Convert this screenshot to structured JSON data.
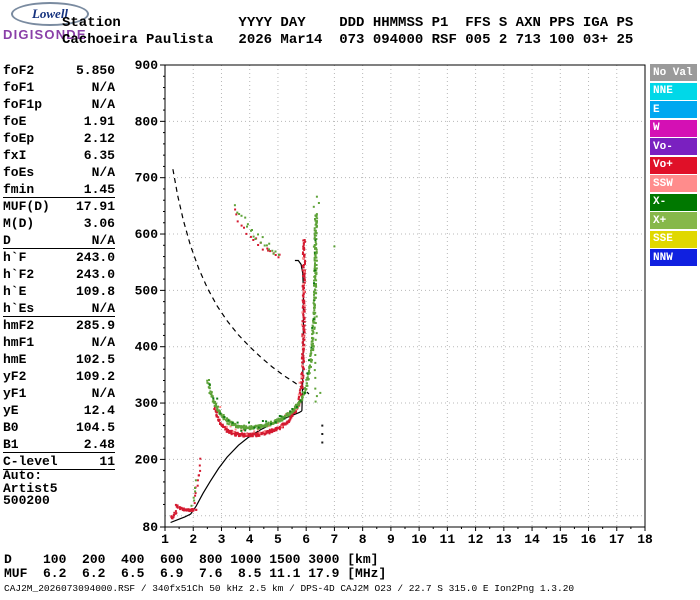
{
  "logo": {
    "oval": "Lowell",
    "brand": "DIGISONDE"
  },
  "header": {
    "line1": "Station              YYYY DAY    DDD HHMMSS P1  FFS S AXN PPS IGA PS",
    "line2": "Cachoeira Paulista   2026 Mar14  073 094000 RSF 005 2 713 100 03+ 25"
  },
  "params": {
    "rows": [
      {
        "label": "foF2",
        "value": "5.850"
      },
      {
        "label": "foF1",
        "value": "N/A"
      },
      {
        "label": "foF1p",
        "value": "N/A"
      },
      {
        "label": "foE",
        "value": "1.91"
      },
      {
        "label": "foEp",
        "value": "2.12"
      },
      {
        "label": "fxI",
        "value": "6.35"
      },
      {
        "label": "foEs",
        "value": "N/A"
      },
      {
        "label": "fmin",
        "value": "1.45",
        "sep_after": true
      },
      {
        "label": "MUF(D)",
        "value": "17.91"
      },
      {
        "label": "M(D)",
        "value": "3.06"
      },
      {
        "label": "D",
        "value": "N/A",
        "sep_after": true
      },
      {
        "label": "h`F",
        "value": "243.0"
      },
      {
        "label": "h`F2",
        "value": "243.0"
      },
      {
        "label": "h`E",
        "value": "109.8"
      },
      {
        "label": "h`Es",
        "value": "N/A",
        "sep_after": true
      },
      {
        "label": "hmF2",
        "value": "285.9"
      },
      {
        "label": "hmF1",
        "value": "N/A"
      },
      {
        "label": "hmE",
        "value": "102.5"
      },
      {
        "label": "yF2",
        "value": "109.2"
      },
      {
        "label": "yF1",
        "value": "N/A"
      },
      {
        "label": "yE",
        "value": "12.4"
      },
      {
        "label": "B0",
        "value": "104.5"
      },
      {
        "label": "B1",
        "value": "2.48",
        "sep_after": true
      },
      {
        "label": "C-level",
        "value": "11",
        "sep_after": true
      },
      {
        "label": "Auto:",
        "value": ""
      },
      {
        "label": "Artist5",
        "value": ""
      },
      {
        "label": "500200",
        "value": ""
      }
    ]
  },
  "legend": {
    "items": [
      {
        "label": "No Val",
        "color": "#9a9a9a"
      },
      {
        "label": "NNE",
        "color": "#00d8e8"
      },
      {
        "label": "E",
        "color": "#00a8f0"
      },
      {
        "label": "W",
        "color": "#d410b4"
      },
      {
        "label": "Vo-",
        "color": "#7a20c0"
      },
      {
        "label": "Vo+",
        "color": "#e01028"
      },
      {
        "label": "SSW",
        "color": "#ff8c8c"
      },
      {
        "label": "X-",
        "color": "#007800"
      },
      {
        "label": "X+",
        "color": "#86b84a"
      },
      {
        "label": "SSE",
        "color": "#e0d800"
      },
      {
        "label": "NNW",
        "color": "#1020e0"
      }
    ]
  },
  "bottom": {
    "d_line": "D    100  200  400  600  800 1000 1500 3000 [km]",
    "muf_line": "MUF  6.2  6.2  6.5  6.9  7.6  8.5 11.1 17.9 [MHz]",
    "file_line": "CAJ2M_2026073094000.RSF / 340fx51Ch 50 kHz 2.5 km / DPS-4D CAJ2M O23 / 22.7 S 315.0 E Ion2Png 1.3.20"
  },
  "chart_data": {
    "type": "scatter",
    "x_unit": "MHz",
    "y_unit": "km",
    "xlim": [
      1,
      18
    ],
    "ylim": [
      80,
      900
    ],
    "x_ticks": [
      1,
      2,
      3,
      4,
      5,
      6,
      7,
      8,
      9,
      10,
      11,
      12,
      13,
      14,
      15,
      16,
      17,
      18
    ],
    "y_ticks": [
      900,
      800,
      700,
      600,
      500,
      400,
      300,
      200,
      80
    ],
    "grid_x": [
      2,
      3,
      4,
      5,
      6,
      7,
      8,
      9,
      10,
      11,
      12,
      13,
      14,
      15,
      16,
      17
    ],
    "grid_y": [
      100,
      200,
      300,
      400,
      500,
      600,
      700,
      800
    ],
    "grid": "dotted",
    "muf_table": {
      "distance_km": [
        100,
        200,
        400,
        600,
        800,
        1000,
        1500,
        3000
      ],
      "muf_mhz": [
        6.2,
        6.2,
        6.5,
        6.9,
        7.6,
        8.5,
        11.1,
        17.9
      ]
    },
    "series": [
      {
        "name": "muf-transmission-curve",
        "kind": "dashed-line",
        "color": "#000000",
        "points": [
          [
            1.28,
            715
          ],
          [
            1.45,
            668
          ],
          [
            1.65,
            624
          ],
          [
            1.9,
            580
          ],
          [
            2.2,
            538
          ],
          [
            2.5,
            504
          ],
          [
            2.85,
            472
          ],
          [
            3.2,
            446
          ],
          [
            3.6,
            421
          ],
          [
            4.0,
            400
          ],
          [
            4.4,
            381
          ],
          [
            4.8,
            364
          ],
          [
            5.2,
            349
          ],
          [
            5.6,
            336
          ],
          [
            5.9,
            325
          ],
          [
            6.1,
            316
          ]
        ]
      },
      {
        "name": "true-height-profile",
        "kind": "line",
        "color": "#000000",
        "points": [
          [
            1.2,
            88
          ],
          [
            1.45,
            93
          ],
          [
            1.7,
            98
          ],
          [
            1.91,
            103
          ],
          [
            2.1,
            117
          ],
          [
            2.35,
            140
          ],
          [
            2.6,
            161
          ],
          [
            2.9,
            184
          ],
          [
            3.2,
            204
          ],
          [
            3.6,
            225
          ],
          [
            4.0,
            241
          ],
          [
            4.4,
            253
          ],
          [
            4.8,
            263
          ],
          [
            5.2,
            272
          ],
          [
            5.5,
            278
          ],
          [
            5.75,
            283
          ],
          [
            5.85,
            286
          ]
        ]
      },
      {
        "name": "fof2-asymptote",
        "kind": "line",
        "color": "#000000",
        "points": [
          [
            5.85,
            286
          ],
          [
            5.87,
            325
          ],
          [
            5.89,
            380
          ],
          [
            5.9,
            440
          ],
          [
            5.9,
            500
          ],
          [
            5.88,
            530
          ],
          [
            5.82,
            546
          ],
          [
            5.72,
            553
          ],
          [
            5.6,
            553
          ]
        ]
      },
      {
        "name": "f-trace-ordinary",
        "kind": "dots",
        "color": "#d41a30",
        "step": 0.04,
        "step_km": 6,
        "layers": 3,
        "spread": 6,
        "points": [
          [
            2.78,
            290
          ],
          [
            2.9,
            272
          ],
          [
            3.05,
            259
          ],
          [
            3.25,
            250
          ],
          [
            3.5,
            245
          ],
          [
            3.8,
            243
          ],
          [
            4.1,
            243
          ],
          [
            4.4,
            245
          ],
          [
            4.7,
            249
          ],
          [
            5.0,
            255
          ],
          [
            5.25,
            263
          ],
          [
            5.45,
            273
          ],
          [
            5.62,
            286
          ],
          [
            5.75,
            302
          ],
          [
            5.83,
            325
          ],
          [
            5.88,
            360
          ],
          [
            5.9,
            400
          ],
          [
            5.91,
            450
          ],
          [
            5.92,
            505
          ],
          [
            5.92,
            555
          ],
          [
            5.93,
            595
          ]
        ]
      },
      {
        "name": "f-trace-ordinary-spread",
        "kind": "dots",
        "color": "#ff8c8c",
        "step": 0.14,
        "step_km": 26,
        "layers": 1,
        "spread": 18,
        "points": [
          [
            2.8,
            295
          ],
          [
            3.3,
            255
          ],
          [
            3.9,
            248
          ],
          [
            4.5,
            250
          ],
          [
            5.0,
            260
          ],
          [
            5.5,
            280
          ],
          [
            5.75,
            310
          ],
          [
            5.86,
            370
          ],
          [
            5.9,
            460
          ],
          [
            5.91,
            540
          ],
          [
            5.92,
            585
          ]
        ]
      },
      {
        "name": "f-trace-extraordinary",
        "kind": "dots",
        "color": "#5ea339",
        "step": 0.045,
        "step_km": 6,
        "layers": 3,
        "spread": 6,
        "points": [
          [
            2.52,
            338
          ],
          [
            2.65,
            315
          ],
          [
            2.8,
            296
          ],
          [
            3.0,
            278
          ],
          [
            3.25,
            266
          ],
          [
            3.55,
            259
          ],
          [
            3.9,
            256
          ],
          [
            4.25,
            257
          ],
          [
            4.6,
            261
          ],
          [
            4.95,
            267
          ],
          [
            5.25,
            275
          ],
          [
            5.55,
            287
          ],
          [
            5.78,
            302
          ],
          [
            5.95,
            322
          ],
          [
            6.1,
            350
          ],
          [
            6.2,
            390
          ],
          [
            6.27,
            440
          ],
          [
            6.31,
            495
          ],
          [
            6.33,
            550
          ],
          [
            6.34,
            600
          ],
          [
            6.35,
            640
          ]
        ]
      },
      {
        "name": "f-trace-extraordinary-dark",
        "kind": "dots",
        "color": "#0f7a12",
        "step": 0.16,
        "step_km": 30,
        "layers": 1,
        "spread": 16,
        "points": [
          [
            2.6,
            330
          ],
          [
            3.1,
            275
          ],
          [
            3.7,
            258
          ],
          [
            4.3,
            258
          ],
          [
            4.9,
            267
          ],
          [
            5.4,
            282
          ],
          [
            5.8,
            305
          ],
          [
            6.05,
            345
          ],
          [
            6.25,
            430
          ],
          [
            6.32,
            530
          ],
          [
            6.34,
            615
          ]
        ]
      },
      {
        "name": "e-trace",
        "kind": "dots",
        "color": "#d41a30",
        "step": 0.035,
        "step_km": 8,
        "layers": 2,
        "spread": 4,
        "points": [
          [
            1.42,
            118
          ],
          [
            1.55,
            113
          ],
          [
            1.7,
            111
          ],
          [
            1.85,
            110
          ],
          [
            2.0,
            110
          ],
          [
            2.1,
            112
          ]
        ]
      },
      {
        "name": "e-region-slant",
        "kind": "dots",
        "color": "#d41a30",
        "step": 0.03,
        "step_km": 8,
        "layers": 1,
        "spread": 9,
        "points": [
          [
            2.04,
            126
          ],
          [
            2.12,
            148
          ],
          [
            2.2,
            176
          ],
          [
            2.28,
            205
          ]
        ]
      },
      {
        "name": "e-region-x",
        "kind": "dots",
        "color": "#5ea339",
        "step": 0.025,
        "step_km": 9,
        "layers": 1,
        "spread": 7,
        "points": [
          [
            1.98,
            116
          ],
          [
            2.02,
            134
          ],
          [
            2.06,
            152
          ],
          [
            2.1,
            170
          ]
        ]
      },
      {
        "name": "fmin-tail",
        "kind": "dots",
        "color": "#d41a30",
        "step": 0.04,
        "step_km": 8,
        "layers": 2,
        "spread": 6,
        "points": [
          [
            1.22,
            96
          ],
          [
            1.32,
            102
          ],
          [
            1.42,
            110
          ]
        ]
      },
      {
        "name": "second-hop-o",
        "kind": "dots",
        "color": "#d41a30",
        "step": 0.1,
        "step_km": 20,
        "layers": 1,
        "spread": 12,
        "points": [
          [
            3.45,
            640
          ],
          [
            3.7,
            618
          ],
          [
            4.0,
            600
          ],
          [
            4.3,
            585
          ],
          [
            4.6,
            573
          ],
          [
            4.9,
            563
          ],
          [
            5.15,
            556
          ]
        ]
      },
      {
        "name": "second-hop-x",
        "kind": "dots",
        "color": "#5ea339",
        "step": 0.08,
        "step_km": 20,
        "layers": 1,
        "spread": 14,
        "points": [
          [
            3.5,
            648
          ],
          [
            3.8,
            624
          ],
          [
            4.1,
            604
          ],
          [
            4.45,
            588
          ],
          [
            4.8,
            574
          ],
          [
            5.1,
            564
          ]
        ]
      },
      {
        "name": "x-top-column",
        "kind": "vspan",
        "color": "#5ea339",
        "f": 6.33,
        "h_from": 300,
        "h_to": 665,
        "step": 14,
        "fspread": 0.06
      },
      {
        "name": "isolated-dark-dots",
        "kind": "points",
        "color": "#1a1a1a",
        "points": [
          [
            6.57,
            230
          ],
          [
            6.57,
            245
          ],
          [
            6.57,
            260
          ]
        ]
      },
      {
        "name": "stray-green-dots",
        "kind": "points",
        "color": "#5ea339",
        "points": [
          [
            6.5,
            318
          ],
          [
            7.0,
            578
          ],
          [
            6.45,
            655
          ]
        ]
      }
    ]
  }
}
